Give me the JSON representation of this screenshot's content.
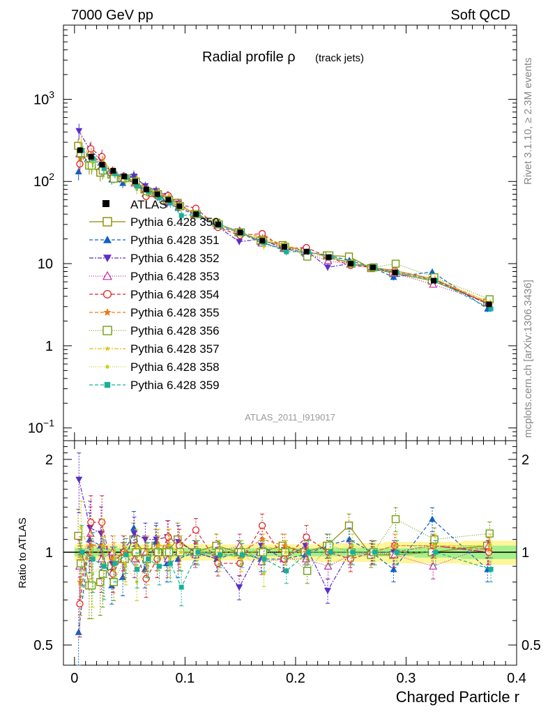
{
  "header": {
    "left_title": "7000 GeV pp",
    "right_title": "Soft QCD"
  },
  "side_texts": {
    "rivet": "Rivet 3.1.10, ≥ 2.3M events",
    "mcplots": "mcplots.cern.ch [arXiv:1306.3436]"
  },
  "chart_data": {
    "type": "scatter",
    "title": "Radial profile ρ",
    "title_suffix": "(track jets)",
    "analysis_label": "ATLAS_2011_I919017",
    "xlabel": "Charged Particle r",
    "ylabel_ratio": "Ratio to ATLAS",
    "xlim": [
      -0.01,
      0.4
    ],
    "ylim_main": [
      0.07,
      8000
    ],
    "yscale_main": "log",
    "ylim_ratio": [
      0.43,
      2.3
    ],
    "yscale_ratio": "log",
    "main_yticks": [
      {
        "value": 0.1,
        "base": "10",
        "exp": "−1"
      },
      {
        "value": 1,
        "base": "1",
        "exp": ""
      },
      {
        "value": 10,
        "base": "10",
        "exp": ""
      },
      {
        "value": 100,
        "base": "10",
        "exp": "2"
      },
      {
        "value": 1000,
        "base": "10",
        "exp": "3"
      }
    ],
    "ratio_yticks": [
      0.5,
      1,
      2
    ],
    "xticks": [
      0,
      0.1,
      0.2,
      0.3,
      0.4
    ],
    "x": [
      0.005,
      0.015,
      0.025,
      0.035,
      0.045,
      0.055,
      0.065,
      0.075,
      0.085,
      0.095,
      0.11,
      0.13,
      0.15,
      0.17,
      0.19,
      0.21,
      0.23,
      0.25,
      0.27,
      0.29,
      0.325,
      0.375
    ],
    "reference": {
      "name": "ATLAS",
      "values": [
        240,
        200,
        160,
        135,
        115,
        100,
        80,
        70,
        60,
        50,
        40,
        30,
        24,
        19,
        16,
        14,
        12,
        10,
        9,
        7.8,
        6.2,
        3.2
      ],
      "band_stat": [
        0.03,
        0.03,
        0.03,
        0.03,
        0.03,
        0.03,
        0.03,
        0.03,
        0.03,
        0.03,
        0.03,
        0.03,
        0.03,
        0.03,
        0.03,
        0.03,
        0.03,
        0.03,
        0.03,
        0.03,
        0.04,
        0.05
      ],
      "band_total": [
        0.06,
        0.06,
        0.06,
        0.06,
        0.06,
        0.06,
        0.06,
        0.06,
        0.06,
        0.06,
        0.06,
        0.06,
        0.06,
        0.06,
        0.06,
        0.06,
        0.07,
        0.07,
        0.07,
        0.08,
        0.08,
        0.09
      ]
    },
    "series": [
      {
        "name": "Pythia 6.428 350",
        "color": "#8b8b00",
        "marker": "square-open",
        "dash": "",
        "ratios": [
          1.13,
          0.78,
          0.8,
          0.9,
          0.95,
          1.1,
          1.0,
          1.05,
          1.0,
          1.1,
          1.0,
          1.05,
          1.0,
          1.0,
          1.05,
          1.0,
          1.05,
          1.22,
          0.98,
          0.98,
          1.0,
          1.05
        ]
      },
      {
        "name": "Pythia 6.428 351",
        "color": "#1060c8",
        "marker": "triangle-up",
        "dash": "5,3",
        "ratios": [
          0.55,
          1.1,
          1.05,
          0.78,
          0.83,
          1.2,
          0.88,
          1.08,
          0.92,
          0.95,
          1.0,
          0.95,
          1.0,
          0.95,
          0.95,
          0.98,
          1.05,
          1.1,
          1.0,
          0.88,
          1.28,
          0.88
        ]
      },
      {
        "name": "Pythia 6.428 352",
        "color": "#5a2ec8",
        "marker": "triangle-down",
        "dash": "6,2,2,2",
        "ratios": [
          1.72,
          1.2,
          1.15,
          0.92,
          1.0,
          1.15,
          1.1,
          1.1,
          1.12,
          1.08,
          1.0,
          0.95,
          0.77,
          1.05,
          0.95,
          1.05,
          0.75,
          1.0,
          1.0,
          1.0,
          1.05,
          1.0
        ]
      },
      {
        "name": "Pythia 6.428 353",
        "color": "#c02aa0",
        "marker": "triangle-open",
        "dash": "1,2",
        "ratios": [
          0.9,
          1.15,
          0.95,
          1.0,
          0.95,
          0.95,
          1.0,
          1.0,
          0.95,
          1.0,
          0.98,
          1.0,
          1.05,
          0.93,
          0.95,
          0.95,
          0.9,
          0.98,
          1.0,
          0.98,
          0.9,
          1.05
        ]
      },
      {
        "name": "Pythia 6.428 354",
        "color": "#e0202a",
        "marker": "circle-open",
        "dash": "5,3",
        "ratios": [
          0.68,
          1.25,
          1.25,
          0.85,
          1.0,
          1.0,
          0.82,
          0.95,
          1.12,
          1.05,
          1.18,
          0.92,
          0.92,
          1.22,
          0.95,
          1.12,
          1.0,
          0.95,
          1.0,
          1.05,
          1.05,
          1.0
        ]
      },
      {
        "name": "Pythia 6.428 355",
        "color": "#f07818",
        "marker": "star",
        "dash": "5,3",
        "ratios": [
          0.8,
          1.05,
          1.05,
          0.95,
          1.0,
          1.0,
          0.95,
          1.05,
          1.05,
          1.0,
          1.0,
          1.0,
          1.0,
          1.1,
          1.05,
          1.0,
          1.0,
          1.0,
          1.0,
          1.05,
          1.05,
          1.02
        ]
      },
      {
        "name": "Pythia 6.428 356",
        "color": "#70a010",
        "marker": "square-open",
        "dash": "1,2",
        "ratios": [
          0.92,
          0.78,
          0.85,
          0.8,
          0.95,
          1.0,
          0.95,
          1.0,
          1.0,
          1.0,
          1.0,
          1.0,
          1.0,
          1.0,
          1.0,
          0.87,
          1.05,
          1.0,
          1.0,
          1.28,
          1.1,
          1.15
        ]
      },
      {
        "name": "Pythia 6.428 357",
        "color": "#e8c010",
        "marker": "star-small",
        "dash": "6,2,2,2",
        "ratios": [
          1.2,
          0.95,
          1.05,
          1.0,
          0.92,
          1.05,
          1.0,
          1.05,
          1.05,
          1.0,
          1.0,
          1.0,
          0.95,
          1.05,
          1.0,
          1.0,
          1.0,
          1.0,
          1.0,
          1.0,
          1.05,
          1.05
        ]
      },
      {
        "name": "Pythia 6.428 358",
        "color": "#c8d020",
        "marker": "dot",
        "dash": "1,2",
        "ratios": [
          1.0,
          0.85,
          0.92,
          0.95,
          0.9,
          0.8,
          0.9,
          1.0,
          0.95,
          1.0,
          1.0,
          0.95,
          1.0,
          0.85,
          1.0,
          1.0,
          1.0,
          1.05,
          1.0,
          1.05,
          1.05,
          1.05
        ]
      },
      {
        "name": "Pythia 6.428 359",
        "color": "#18b098",
        "marker": "square-small",
        "dash": "5,3",
        "ratios": [
          1.0,
          0.95,
          0.9,
          0.92,
          0.98,
          0.88,
          0.95,
          0.9,
          0.92,
          0.77,
          1.0,
          0.98,
          0.98,
          0.95,
          0.87,
          1.0,
          1.0,
          1.0,
          1.0,
          1.0,
          1.0,
          0.88
        ]
      }
    ]
  }
}
